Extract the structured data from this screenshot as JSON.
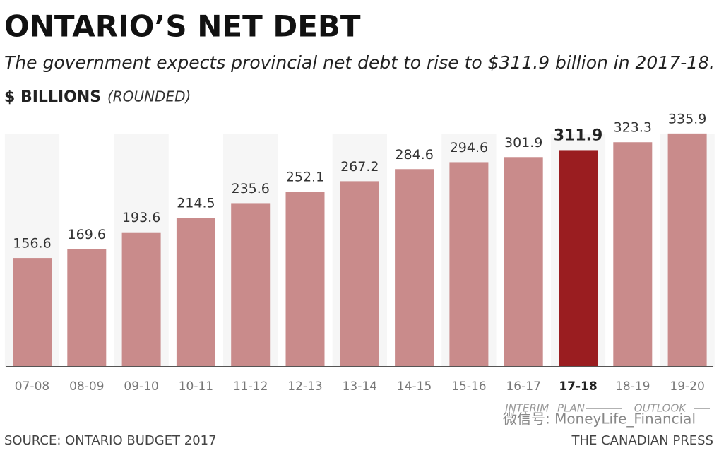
{
  "chart_data": {
    "type": "bar",
    "title": "ONTARIO’S NET DEBT",
    "subtitle": "The government expects provincial net debt to rise to $311.9 billion in 2017-18.",
    "y_label": "$ BILLIONS",
    "y_label_note": "(ROUNDED)",
    "categories": [
      "07-08",
      "08-09",
      "09-10",
      "10-11",
      "11-12",
      "12-13",
      "13-14",
      "14-15",
      "15-16",
      "16-17",
      "17-18",
      "18-19",
      "19-20"
    ],
    "values": [
      156.6,
      169.6,
      193.6,
      214.5,
      235.6,
      252.1,
      267.2,
      284.6,
      294.6,
      301.9,
      311.9,
      323.3,
      335.9
    ],
    "colors": [
      "#c98b8b",
      "#c98b8b",
      "#c98b8b",
      "#c98b8b",
      "#c98b8b",
      "#c98b8b",
      "#c98b8b",
      "#c98b8b",
      "#c98b8b",
      "#c98b8b",
      "#9a1d20",
      "#c98b8b",
      "#c98b8b"
    ],
    "ylim": [
      0,
      350
    ],
    "annotations": [
      "INTERIM",
      "PLAN",
      "OUTLOOK"
    ],
    "source": "SOURCE: ONTARIO BUDGET 2017",
    "credit": "THE CANADIAN PRESS",
    "watermark": "微信号: MoneyLife_Financial"
  }
}
